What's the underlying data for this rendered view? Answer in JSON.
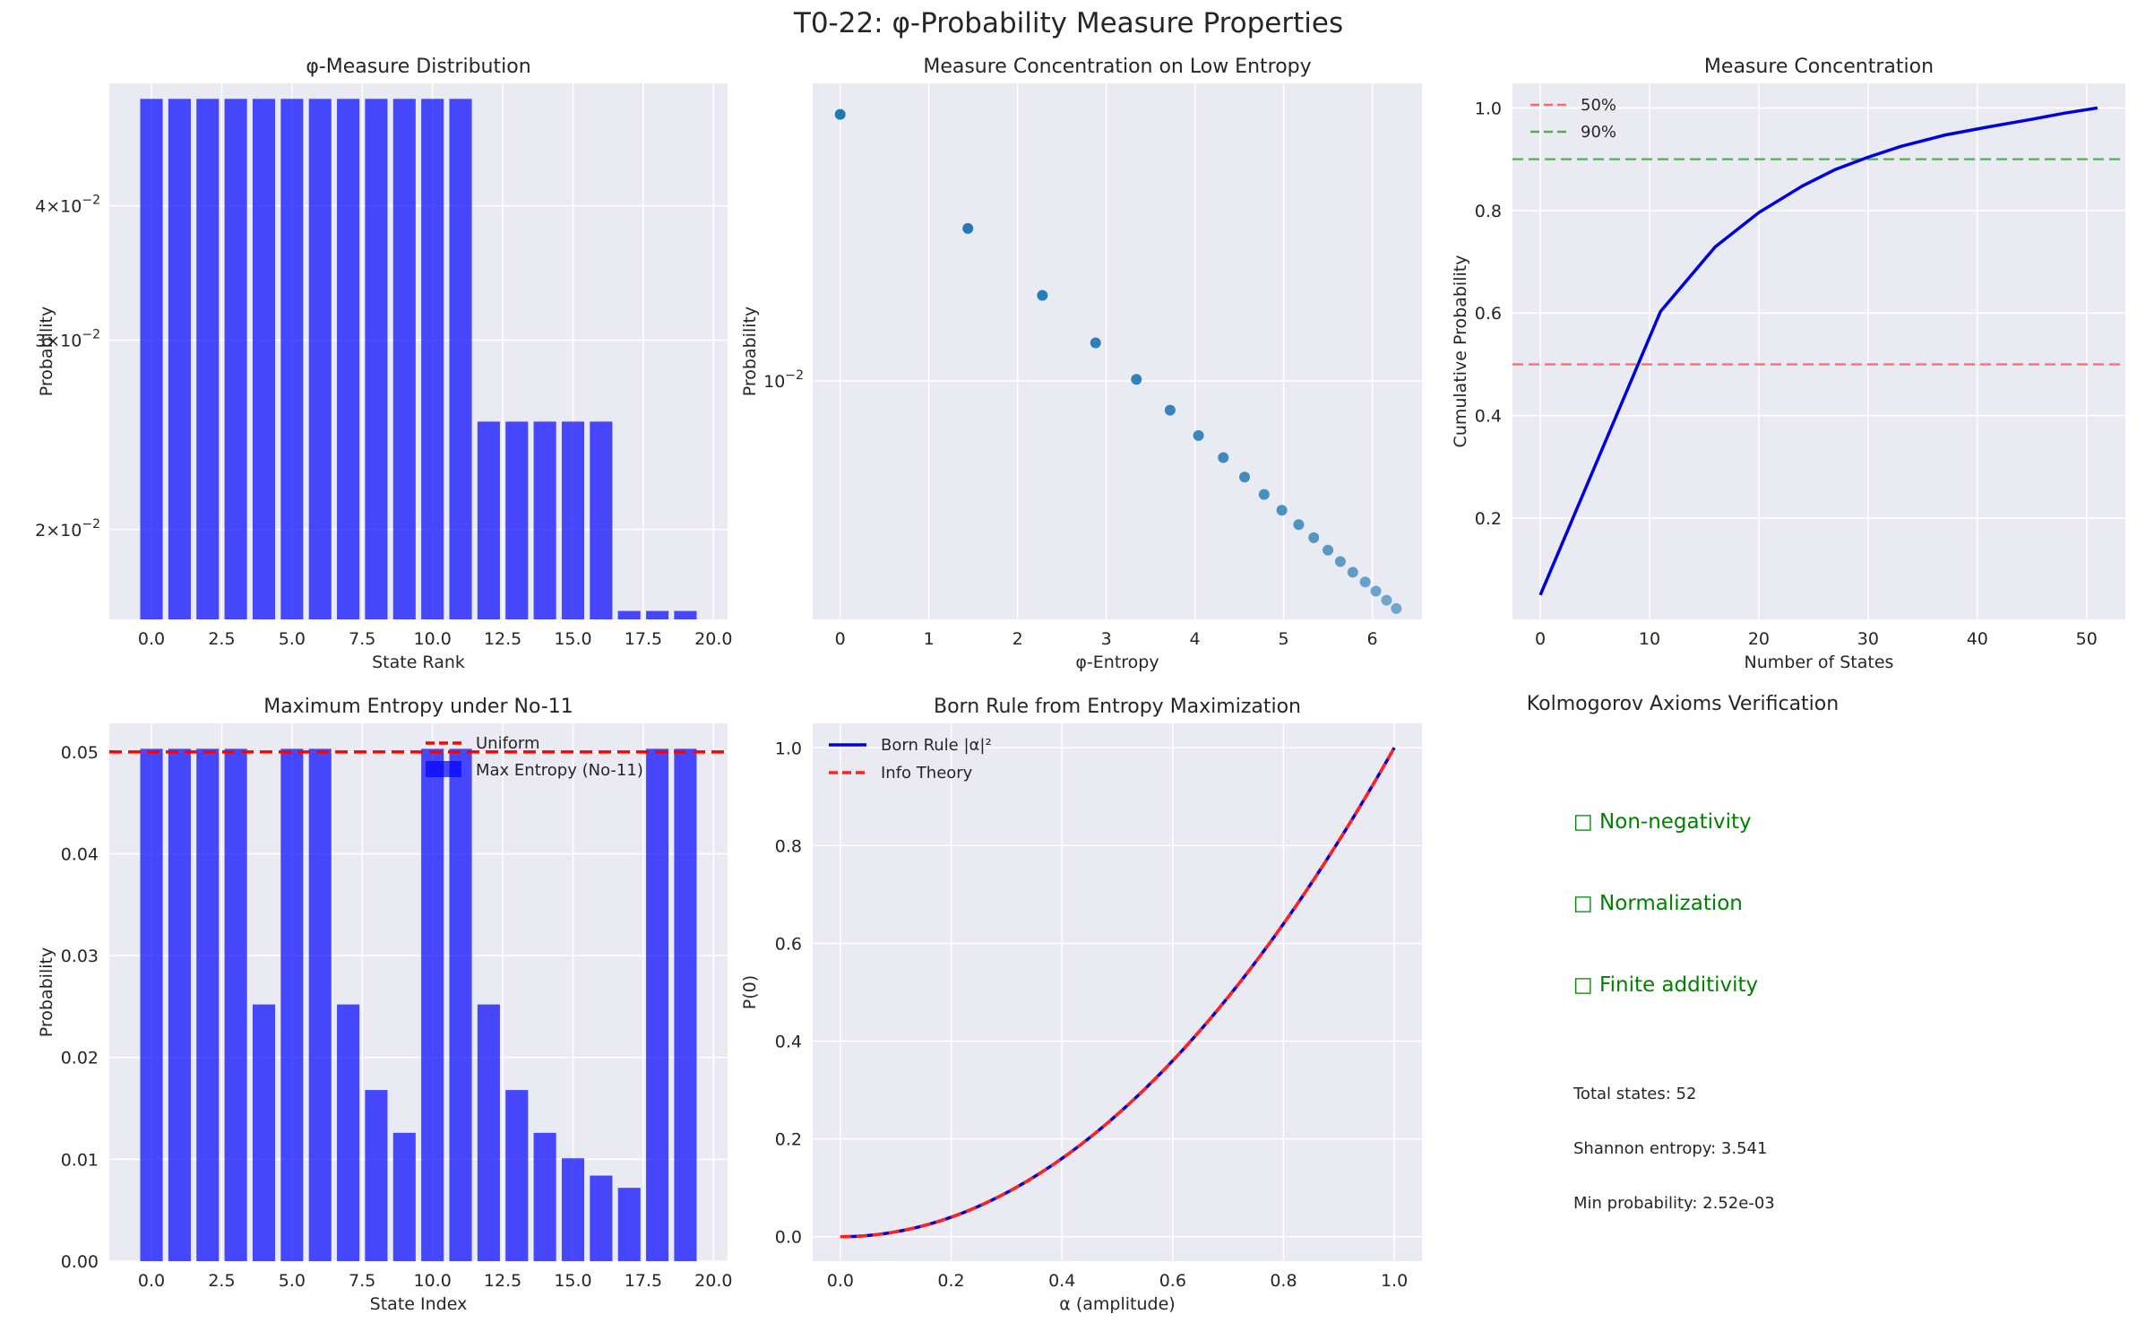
{
  "suptitle": "T0-22: φ-Probability Measure Properties",
  "colors": {
    "panel_bg": "#EAEAF2",
    "grid": "#FFFFFF",
    "bar": "#0000FF",
    "scatter": "#1F77B4",
    "line_blue": "#0000DD",
    "line_red": "#FF0000",
    "green": "#008000"
  },
  "chart_data": [
    {
      "type": "bar",
      "title": "φ-Measure Distribution",
      "xlabel": "State Rank",
      "ylabel": "Probability",
      "yscale": "log",
      "xlim": [
        -1.5,
        20.5
      ],
      "ylim": [
        0.0165,
        0.052
      ],
      "xticks": [
        "0.0",
        "2.5",
        "5.0",
        "7.5",
        "10.0",
        "12.5",
        "15.0",
        "17.5",
        "20.0"
      ],
      "yticks": [
        {
          "value": 0.02,
          "base": "2×10",
          "exp": "−2"
        },
        {
          "value": 0.03,
          "base": "3×10",
          "exp": "−2"
        },
        {
          "value": 0.04,
          "base": "4×10",
          "exp": "−2"
        }
      ],
      "categories": [
        0,
        1,
        2,
        3,
        4,
        5,
        6,
        7,
        8,
        9,
        10,
        11,
        12,
        13,
        14,
        15,
        16,
        17,
        18,
        19
      ],
      "values": [
        0.0503,
        0.0503,
        0.0503,
        0.0503,
        0.0503,
        0.0503,
        0.0503,
        0.0503,
        0.0503,
        0.0503,
        0.0503,
        0.0503,
        0.0252,
        0.0252,
        0.0252,
        0.0252,
        0.0252,
        0.0168,
        0.0168,
        0.0168
      ]
    },
    {
      "type": "scatter",
      "title": "Measure Concentration on Low Entropy",
      "xlabel": "φ-Entropy",
      "ylabel": "Probability",
      "yscale": "log",
      "xlim": [
        -0.31,
        6.56
      ],
      "ylim": [
        0.00236,
        0.0607
      ],
      "xticks": [
        "0",
        "1",
        "2",
        "3",
        "4",
        "5",
        "6"
      ],
      "yticks": [
        {
          "value": 0.01,
          "base": "10",
          "exp": "−2"
        }
      ],
      "x": [
        0,
        1.44,
        2.28,
        2.88,
        3.34,
        3.72,
        4.04,
        4.32,
        4.56,
        4.78,
        4.98,
        5.17,
        5.34,
        5.5,
        5.64,
        5.78,
        5.92,
        6.04,
        6.16,
        6.27
      ],
      "values": [
        0.0503,
        0.0252,
        0.0168,
        0.0126,
        0.0101,
        0.00838,
        0.00719,
        0.00629,
        0.00559,
        0.00503,
        0.00457,
        0.00419,
        0.00387,
        0.00359,
        0.00335,
        0.00314,
        0.00296,
        0.0028,
        0.00265,
        0.00252
      ]
    },
    {
      "type": "line",
      "title": "Measure Concentration",
      "xlabel": "Number of States",
      "ylabel": "Cumulative Probability",
      "xlim": [
        -2.55,
        53.55
      ],
      "ylim": [
        0.0025,
        1.048
      ],
      "xticks": [
        "0",
        "10",
        "20",
        "30",
        "40",
        "50"
      ],
      "yticks": [
        "0.2",
        "0.4",
        "0.6",
        "0.8",
        "1.0"
      ],
      "x": [
        0,
        11,
        16,
        20,
        24,
        27,
        30,
        33,
        37,
        41,
        45,
        48,
        51
      ],
      "values": [
        0.05,
        0.603,
        0.729,
        0.796,
        0.848,
        0.88,
        0.904,
        0.925,
        0.947,
        0.963,
        0.978,
        0.99,
        1.0
      ],
      "hlines": [
        {
          "name": "50%",
          "value": 0.5,
          "color": "#FF6666"
        },
        {
          "name": "90%",
          "value": 0.9,
          "color": "#55AA55"
        }
      ],
      "legend": "top-left"
    },
    {
      "type": "bar",
      "title": "Maximum Entropy under No-11",
      "xlabel": "State Index",
      "ylabel": "Probability",
      "xlim": [
        -1.5,
        20.5
      ],
      "ylim": [
        0,
        0.0528
      ],
      "xticks": [
        "0.0",
        "2.5",
        "5.0",
        "7.5",
        "10.0",
        "12.5",
        "15.0",
        "17.5",
        "20.0"
      ],
      "yticks": [
        "0.00",
        "0.01",
        "0.02",
        "0.03",
        "0.04",
        "0.05"
      ],
      "categories": [
        0,
        1,
        2,
        3,
        4,
        5,
        6,
        7,
        8,
        9,
        10,
        11,
        12,
        13,
        14,
        15,
        16,
        17,
        18,
        19
      ],
      "values": [
        0.0503,
        0.0503,
        0.0503,
        0.0503,
        0.0252,
        0.0503,
        0.0503,
        0.0252,
        0.0168,
        0.0126,
        0.0503,
        0.0503,
        0.0252,
        0.0168,
        0.0126,
        0.0101,
        0.0084,
        0.0072,
        0.0503,
        0.0503
      ],
      "series": [
        {
          "name": "Uniform",
          "value": 0.05
        },
        {
          "name": "Max Entropy (No-11)"
        }
      ],
      "legend": "top-right"
    },
    {
      "type": "line",
      "title": "Born Rule from Entropy Maximization",
      "xlabel": "α (amplitude)",
      "ylabel": "P(0)",
      "xlim": [
        -0.05,
        1.05
      ],
      "ylim": [
        -0.05,
        1.05
      ],
      "xticks": [
        "0.0",
        "0.2",
        "0.4",
        "0.6",
        "0.8",
        "1.0"
      ],
      "yticks": [
        "0.0",
        "0.2",
        "0.4",
        "0.6",
        "0.8",
        "1.0"
      ],
      "function": "x^2",
      "x": [
        0,
        0.2,
        0.4,
        0.6,
        0.8,
        1.0
      ],
      "values": [
        0,
        0.04,
        0.16,
        0.36,
        0.64,
        1.0
      ],
      "series": [
        {
          "name": "Born Rule |α|²",
          "color": "#0000DD",
          "style": "solid"
        },
        {
          "name": "Info Theory",
          "color": "#FF2222",
          "style": "dashed"
        }
      ],
      "legend": "top-left"
    }
  ],
  "axioms_panel": {
    "title": "Kolmogorov Axioms Verification",
    "checks": [
      "□ Non-negativity",
      "□ Normalization",
      "□ Finite additivity"
    ],
    "stats": [
      "Total states: 52",
      "Shannon entropy: 3.541",
      "Min probability: 2.52e-03"
    ]
  }
}
